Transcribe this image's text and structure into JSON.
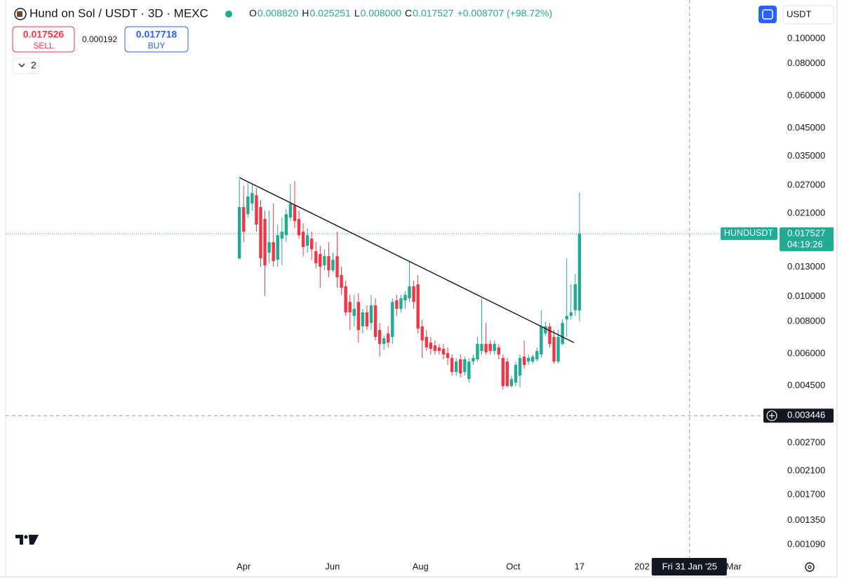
{
  "header": {
    "title": "Hund on Sol / USDT · 3D · MEXC",
    "ohlc": [
      {
        "key": "O",
        "value": "0.008820"
      },
      {
        "key": "H",
        "value": "0.025251"
      },
      {
        "key": "L",
        "value": "0.008000"
      },
      {
        "key": "C",
        "value": "0.017527"
      }
    ],
    "change": "+0.008707 (+98.72%)",
    "sell": {
      "price": "0.017526",
      "label": "SELL"
    },
    "spread": "0.000192",
    "buy": {
      "price": "0.017718",
      "label": "BUY"
    },
    "indicators": "2",
    "currency": "USDT"
  },
  "chart_data": {
    "type": "candlestick",
    "log_scale": true,
    "up_color": "#22ab94",
    "down_color": "#f23645",
    "open": [
      0.01405,
      0.02221,
      0.02086,
      0.02292,
      0.0247,
      0.02221,
      0.01997,
      0.01478,
      0.01623,
      0.01388,
      0.01675,
      0.01728,
      0.02022,
      0.02263,
      0.01997,
      0.01783,
      0.01573,
      0.01675,
      0.01497,
      0.0146,
      0.0132,
      0.01432,
      0.01263,
      0.01432,
      0.01209,
      0.01094,
      0.00952,
      0.0084,
      0.00952,
      0.00765,
      0.00867,
      0.00789,
      0.00923,
      0.00741,
      0.00654,
      0.00718,
      0.00696,
      0.00965,
      0.00895,
      0.00965,
      0.00983,
      0.01094,
      0.01114,
      0.00765,
      0.00696,
      0.00662,
      0.00646,
      0.00634,
      0.00626,
      0.00603,
      0.00577,
      0.00509,
      0.0057,
      0.00509,
      0.00478,
      0.00559,
      0.0057,
      0.00614,
      0.00654,
      0.00654,
      0.00614,
      0.00634,
      0.00577,
      0.00559,
      0.00449,
      0.00463,
      0.00493,
      0.00584,
      0.00559,
      0.00559,
      0.0057,
      0.00595,
      0.00718,
      0.00765,
      0.00696,
      0.00559,
      0.00654,
      0.00814,
      0.0084,
      0.00884,
      0.00882
    ],
    "high": [
      0.02854,
      0.02681,
      0.02766,
      0.02732,
      0.02631,
      0.02365,
      0.02152,
      0.02152,
      0.02292,
      0.01899,
      0.02022,
      0.02179,
      0.02732,
      0.02801,
      0.02152,
      0.01923,
      0.0184,
      0.01783,
      0.01623,
      0.01573,
      0.01525,
      0.01623,
      0.01478,
      0.01783,
      0.01304,
      0.0115,
      0.01014,
      0.01014,
      0.01027,
      0.00895,
      0.00923,
      0.01014,
      0.00983,
      0.00789,
      0.00705,
      0.00765,
      0.00983,
      0.01014,
      0.01014,
      0.01047,
      0.01371,
      0.0115,
      0.01209,
      0.00814,
      0.00741,
      0.00696,
      0.00675,
      0.00654,
      0.00654,
      0.00634,
      0.00595,
      0.00577,
      0.00595,
      0.00584,
      0.00577,
      0.00595,
      0.00696,
      0.00983,
      0.00789,
      0.00675,
      0.00675,
      0.00654,
      0.00595,
      0.00577,
      0.00493,
      0.00559,
      0.00595,
      0.00675,
      0.00595,
      0.00595,
      0.00634,
      0.00884,
      0.00798,
      0.00789,
      0.00741,
      0.00741,
      0.00814,
      0.01405,
      0.01114,
      0.01224,
      0.025251
    ],
    "low": [
      0.01388,
      0.01623,
      0.02022,
      0.02152,
      0.01783,
      0.01304,
      0.01002,
      0.01345,
      0.01304,
      0.01304,
      0.0132,
      0.01623,
      0.01959,
      0.0184,
      0.01675,
      0.01432,
      0.01478,
      0.01388,
      0.01288,
      0.0108,
      0.01263,
      0.01187,
      0.0124,
      0.0108,
      0.01014,
      0.0084,
      0.00741,
      0.00765,
      0.00662,
      0.00718,
      0.00741,
      0.00741,
      0.00675,
      0.00584,
      0.00622,
      0.00634,
      0.00654,
      0.0084,
      0.00867,
      0.00895,
      0.00952,
      0.00895,
      0.00718,
      0.00577,
      0.00614,
      0.00595,
      0.00595,
      0.00595,
      0.0057,
      0.00542,
      0.00493,
      0.00493,
      0.00484,
      0.00493,
      0.00463,
      0.00542,
      0.00559,
      0.00595,
      0.00595,
      0.00595,
      0.00595,
      0.0057,
      0.00435,
      0.00443,
      0.00443,
      0.00449,
      0.00443,
      0.00525,
      0.00542,
      0.00549,
      0.00559,
      0.00577,
      0.00705,
      0.00634,
      0.00549,
      0.00549,
      0.00646,
      0.00696,
      0.00814,
      0.0084,
      0.008
    ],
    "close": [
      0.02221,
      0.01783,
      0.0244,
      0.02518,
      0.01899,
      0.01405,
      0.0132,
      0.01623,
      0.01371,
      0.01728,
      0.01783,
      0.02086,
      0.02292,
      0.01959,
      0.01728,
      0.01553,
      0.01728,
      0.01525,
      0.01345,
      0.01304,
      0.01432,
      0.01263,
      0.01388,
      0.01187,
      0.0108,
      0.00867,
      0.00867,
      0.00895,
      0.00741,
      0.00867,
      0.00765,
      0.00923,
      0.00696,
      0.00654,
      0.00688,
      0.00662,
      0.00952,
      0.00895,
      0.00983,
      0.01014,
      0.01094,
      0.00952,
      0.0075,
      0.00675,
      0.00634,
      0.00626,
      0.00614,
      0.00614,
      0.00595,
      0.00577,
      0.00509,
      0.00559,
      0.00503,
      0.0057,
      0.00559,
      0.00577,
      0.00654,
      0.00654,
      0.00607,
      0.00614,
      0.00654,
      0.00595,
      0.00449,
      0.00449,
      0.00478,
      0.00542,
      0.00577,
      0.00542,
      0.00577,
      0.00584,
      0.00614,
      0.00765,
      0.00765,
      0.00654,
      0.00559,
      0.00696,
      0.00789,
      0.0084,
      0.00867,
      0.01114,
      0.017527
    ],
    "trendline": {
      "x": [
        0,
        78.7
      ],
      "values": [
        0.0289,
        0.00662
      ]
    },
    "ylim": [
      0.000967,
      0.1412
    ],
    "yticks": [
      {
        "value": 0.1,
        "label": "0.100000"
      },
      {
        "value": 0.08,
        "label": "0.080000"
      },
      {
        "value": 0.06,
        "label": "0.060000"
      },
      {
        "value": 0.045,
        "label": "0.045000"
      },
      {
        "value": 0.035,
        "label": "0.035000"
      },
      {
        "value": 0.027,
        "label": "0.027000"
      },
      {
        "value": 0.021,
        "label": "0.021000"
      },
      {
        "value": 0.013,
        "label": "0.013000"
      },
      {
        "value": 0.01,
        "label": "0.010000"
      },
      {
        "value": 0.008,
        "label": "0.008000"
      },
      {
        "value": 0.006,
        "label": "0.006000"
      },
      {
        "value": 0.0045,
        "label": "0.004500"
      },
      {
        "value": 0.0027,
        "label": "0.002700"
      },
      {
        "value": 0.0021,
        "label": "0.002100"
      },
      {
        "value": 0.0017,
        "label": "0.001700"
      },
      {
        "value": 0.00135,
        "label": "0.001350"
      },
      {
        "value": 0.00109,
        "label": "0.001090"
      }
    ],
    "xlim": [
      -55,
      126.9
    ],
    "xticks": [
      {
        "value": 1.0,
        "label": "Apr"
      },
      {
        "value": 21.9,
        "label": "Jun"
      },
      {
        "value": 42.6,
        "label": "Aug"
      },
      {
        "value": 64.4,
        "label": "Oct"
      },
      {
        "value": 80,
        "label": "17"
      },
      {
        "value": 94.7,
        "label": "202"
      },
      {
        "value": 116.3,
        "label": "Mar"
      }
    ],
    "symbol": "HUNDUSDT",
    "last_price": 0.017527,
    "countdown": "04:19:26",
    "crosshair": {
      "x": 105.9,
      "date": "Fri 31 Jan '25",
      "price": 0.003446
    },
    "grid": false
  }
}
